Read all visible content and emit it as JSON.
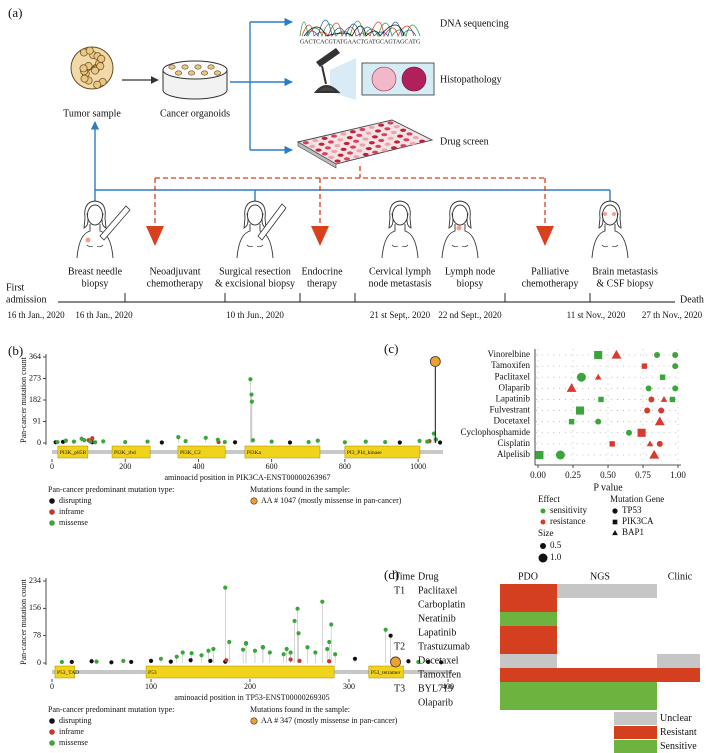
{
  "panel_a": {
    "label": "(a)",
    "sample": "Tumor sample",
    "organoids": "Cancer organoids",
    "outputs": [
      "DNA sequencing",
      "Histopathology",
      "Drug screen"
    ],
    "sequence": "GACTCACGTATGAACTGATGCAGTAGCATG",
    "events": [
      [
        "Breast needle",
        "biopsy"
      ],
      [
        "Neoadjuvant",
        "chemotherapy"
      ],
      [
        "Surgical resection",
        "& excisional biopsy"
      ],
      [
        "Endocrine",
        "therapy"
      ],
      [
        "Cervical lymph",
        "node metastasis"
      ],
      [
        "Lymph node",
        "biopsy"
      ],
      [
        "Palliative",
        "chemotherapy"
      ],
      [
        "Brain metastasis",
        "& CSF biopsy"
      ]
    ],
    "start": [
      "First",
      "admission"
    ],
    "end": "Death",
    "dates": [
      "16 th Jan., 2020",
      "16 th Jan., 2020",
      "10 th Jun., 2020",
      "21 st Sept,. 2020",
      "22 nd Sept., 2020",
      "11 st Nov., 2020",
      "27 th Nov., 2020"
    ]
  },
  "panel_b_label": "(b)",
  "panel_c_label": "(c)",
  "chart_data": [
    {
      "type": "lollipop",
      "ylabel": "Pan-cancer mutation count",
      "xlabel": "aminoacid position in PIK3CA-ENST00000263967",
      "xlim": [
        0,
        1068
      ],
      "ylim": [
        0,
        364
      ],
      "xticks": [
        0,
        200,
        400,
        600,
        800,
        1000
      ],
      "yticks": [
        0,
        91,
        182,
        273,
        364
      ],
      "domains": [
        {
          "name": "PI3K_p85B",
          "start": 16,
          "end": 98
        },
        {
          "name": "PI3K_rbd",
          "start": 164,
          "end": 268
        },
        {
          "name": "PI3K_C2",
          "start": 344,
          "end": 473
        },
        {
          "name": "PI3Ka",
          "start": 527,
          "end": 732
        },
        {
          "name": "PI3_PI4_kinase",
          "start": 800,
          "end": 1005
        }
      ],
      "legend_title": "Pan-cancer predominant mutation type:",
      "series": [
        {
          "name": "disrupting",
          "color": "#111111",
          "x": [
            10,
            30,
            110,
            300,
            500,
            650,
            950,
            1060
          ],
          "values": [
            3,
            5,
            3,
            2,
            3,
            2,
            2,
            2
          ]
        },
        {
          "name": "inframe",
          "color": "#c0392b",
          "x": [
            100,
            110,
            455,
            1031
          ],
          "values": [
            12,
            20,
            4,
            8
          ]
        },
        {
          "name": "missense",
          "color": "#3aa63a",
          "x": [
            15,
            38,
            60,
            81,
            88,
            105,
            118,
            140,
            200,
            261,
            345,
            365,
            420,
            453,
            472,
            542,
            545,
            546,
            549,
            600,
            701,
            726,
            800,
            857,
            910,
            1004,
            1025,
            1043,
            1049
          ],
          "values": [
            4,
            10,
            6,
            18,
            12,
            5,
            3,
            7,
            4,
            6,
            25,
            8,
            22,
            14,
            4,
            270,
            205,
            175,
            12,
            6,
            4,
            10,
            3,
            6,
            4,
            9,
            6,
            40,
            15
          ]
        }
      ],
      "sample_title": "Mutations found in the sample:",
      "sample": {
        "label": "AA # 1047 (mostly missense in pan-cancer)",
        "color": "#f0a030",
        "x": 1047,
        "value": 345
      }
    },
    {
      "type": "lollipop",
      "ylabel": "Pan-cancer mutation count",
      "xlabel": "aminoacid position in TP53-ENST00000269305",
      "xlim": [
        0,
        404
      ],
      "ylim": [
        0,
        234
      ],
      "xticks": [
        0,
        100,
        200,
        300,
        400
      ],
      "yticks": [
        0,
        78,
        156,
        234
      ],
      "domains": [
        {
          "name": "P53_TAD",
          "start": 3,
          "end": 23
        },
        {
          "name": "P53",
          "start": 95,
          "end": 285
        },
        {
          "name": "P53_tetramer",
          "start": 320,
          "end": 355
        }
      ],
      "legend_title": "Pan-cancer predominant mutation type:",
      "series": [
        {
          "name": "disrupting",
          "color": "#111111",
          "x": [
            20,
            40,
            60,
            80,
            100,
            120,
            140,
            160,
            175,
            196,
            213,
            306,
            342,
            360,
            380,
            393
          ],
          "values": [
            3,
            5,
            2,
            3,
            6,
            4,
            8,
            6,
            4,
            56,
            45,
            12,
            78,
            5,
            3,
            2
          ]
        },
        {
          "name": "inframe",
          "color": "#c0392b",
          "x": [
            176,
            241,
            250,
            280
          ],
          "values": [
            8,
            10,
            6,
            5
          ]
        },
        {
          "name": "missense",
          "color": "#3aa63a",
          "x": [
            10,
            45,
            72,
            110,
            126,
            132,
            141,
            151,
            158,
            163,
            175,
            179,
            193,
            196,
            205,
            213,
            220,
            234,
            237,
            241,
            245,
            248,
            249,
            258,
            266,
            273,
            278,
            280,
            282,
            286,
            337,
            344,
            370
          ],
          "values": [
            3,
            4,
            6,
            12,
            18,
            30,
            28,
            22,
            35,
            40,
            215,
            60,
            38,
            55,
            35,
            45,
            30,
            25,
            40,
            30,
            120,
            155,
            85,
            45,
            30,
            175,
            40,
            60,
            110,
            25,
            95,
            5,
            3
          ]
        }
      ],
      "sample_title": "Mutations found in the sample:",
      "sample": {
        "label": "AA # 347 (mostly missense in pan-cancer)",
        "color": "#f0a030",
        "x": 347,
        "value": 3
      }
    },
    {
      "type": "dotplot",
      "xlabel": "P value",
      "xlim": [
        0,
        1
      ],
      "xticks": [
        {
          "value": 0,
          "label": "0.00"
        },
        {
          "value": 0.25,
          "label": "0.25"
        },
        {
          "value": 0.5,
          "label": "0.50"
        },
        {
          "value": 0.75,
          "label": "0.75"
        },
        {
          "value": 1,
          "label": "1.00"
        }
      ],
      "grid": true,
      "categories": [
        "Vinorelbine",
        "Tamoxifen",
        "Paclitaxel",
        "Olaparib",
        "Lapatinib",
        "Fulvestrant",
        "Docetaxel",
        "Cyclophosphamide",
        "Cisplatin",
        "Alpelisib"
      ],
      "effect_title": "Effect",
      "size_title": "Size",
      "sizes": [
        0.5,
        {
          "value": 1,
          "label": "1.0"
        }
      ],
      "gene_title": "Mutation Gene",
      "genes": [
        "TP53",
        "PIK3CA",
        "BAP1"
      ],
      "gene_shapes": [
        "circle",
        "square",
        "triangle"
      ],
      "series": [
        {
          "name": "sensitivity",
          "color": "#3aa63a",
          "points": [
            {
              "category": "Vinorelbine",
              "gene": "PIK3CA",
              "x": 0.43,
              "size": 1
            },
            {
              "category": "Vinorelbine",
              "gene": "TP53",
              "x": 0.85,
              "size": 0.5
            },
            {
              "category": "Vinorelbine",
              "gene": "TP53",
              "x": 0.98,
              "size": 0.5
            },
            {
              "category": "Tamoxifen",
              "gene": "TP53",
              "x": 0.98,
              "size": 0.5
            },
            {
              "category": "Paclitaxel",
              "gene": "TP53",
              "x": 0.31,
              "size": 1
            },
            {
              "category": "Paclitaxel",
              "gene": "PIK3CA",
              "x": 0.89,
              "size": 0.5
            },
            {
              "category": "Olaparib",
              "gene": "TP53",
              "x": 0.79,
              "size": 0.5
            },
            {
              "category": "Olaparib",
              "gene": "TP53",
              "x": 0.98,
              "size": 0.5
            },
            {
              "category": "Lapatinib",
              "gene": "PIK3CA",
              "x": 0.45,
              "size": 0.5
            },
            {
              "category": "Lapatinib",
              "gene": "PIK3CA",
              "x": 0.96,
              "size": 0.5
            },
            {
              "category": "Fulvestrant",
              "gene": "PIK3CA",
              "x": 0.3,
              "size": 1
            },
            {
              "category": "Docetaxel",
              "gene": "PIK3CA",
              "x": 0.24,
              "size": 0.5
            },
            {
              "category": "Docetaxel",
              "gene": "TP53",
              "x": 0.43,
              "size": 0.5
            },
            {
              "category": "Cyclophosphamide",
              "gene": "TP53",
              "x": 0.65,
              "size": 0.5
            },
            {
              "category": "Alpelisib",
              "gene": "PIK3CA",
              "x": 0.01,
              "size": 1
            },
            {
              "category": "Alpelisib",
              "gene": "TP53",
              "x": 0.16,
              "size": 1
            }
          ]
        },
        {
          "name": "resistance",
          "color": "#d83a2e",
          "points": [
            {
              "category": "Vinorelbine",
              "gene": "BAP1",
              "x": 0.56,
              "size": 1
            },
            {
              "category": "Tamoxifen",
              "gene": "PIK3CA",
              "x": 0.76,
              "size": 0.5
            },
            {
              "category": "Paclitaxel",
              "gene": "BAP1",
              "x": 0.43,
              "size": 0.5
            },
            {
              "category": "Olaparib",
              "gene": "BAP1",
              "x": 0.24,
              "size": 1
            },
            {
              "category": "Lapatinib",
              "gene": "TP53",
              "x": 0.81,
              "size": 0.5
            },
            {
              "category": "Lapatinib",
              "gene": "BAP1",
              "x": 0.9,
              "size": 0.5
            },
            {
              "category": "Fulvestrant",
              "gene": "TP53",
              "x": 0.78,
              "size": 0.5
            },
            {
              "category": "Fulvestrant",
              "gene": "TP53",
              "x": 0.88,
              "size": 0.5
            },
            {
              "category": "Docetaxel",
              "gene": "BAP1",
              "x": 0.87,
              "size": 1
            },
            {
              "category": "Cyclophosphamide",
              "gene": "PIK3CA",
              "x": 0.74,
              "size": 1
            },
            {
              "category": "Cisplatin",
              "gene": "PIK3CA",
              "x": 0.53,
              "size": 0.5
            },
            {
              "category": "Cisplatin",
              "gene": "BAP1",
              "x": 0.8,
              "size": 0.5
            },
            {
              "category": "Cisplatin",
              "gene": "TP53",
              "x": 0.87,
              "size": 0.5
            },
            {
              "category": "Alpelisib",
              "gene": "BAP1",
              "x": 0.83,
              "size": 1
            }
          ]
        }
      ]
    }
  ],
  "panel_d": {
    "label": "(d)",
    "columns": [
      "Time",
      "Drug",
      "PDO",
      "NGS",
      "Clinic"
    ],
    "rows": [
      {
        "time": "T1",
        "drug": "Paclitaxel",
        "cells": [
          "Resistant",
          "Unclear",
          null
        ]
      },
      {
        "drug": "Carboplatin",
        "cells": [
          "Resistant",
          null,
          null
        ]
      },
      {
        "drug": "Neratinib",
        "cells": [
          "Sensitive",
          null,
          null
        ]
      },
      {
        "drug": "Lapatinib",
        "cells": [
          "Resistant",
          null,
          null
        ]
      },
      {
        "time": "T2",
        "drug": "Trastuzumab",
        "cells": [
          "Resistant",
          null,
          null
        ]
      },
      {
        "drug": "Docetaxel",
        "cells": [
          "Unclear",
          null,
          "Unclear"
        ]
      },
      {
        "drug": "Tamoxifen",
        "cells": [
          "Resistant",
          "Resistant",
          "Resistant"
        ]
      },
      {
        "time": "T3",
        "drug": "BYL719",
        "cells": [
          "Sensitive",
          "Sensitive",
          null
        ]
      },
      {
        "drug": "Olaparib",
        "cells": [
          "Sensitive",
          "Sensitive",
          null
        ]
      }
    ],
    "legend": [
      {
        "label": "Unclear",
        "color": "#c6c6c6"
      },
      {
        "label": "Resistant",
        "color": "#d4401f"
      },
      {
        "label": "Sensitive",
        "color": "#6db33f"
      }
    ]
  }
}
